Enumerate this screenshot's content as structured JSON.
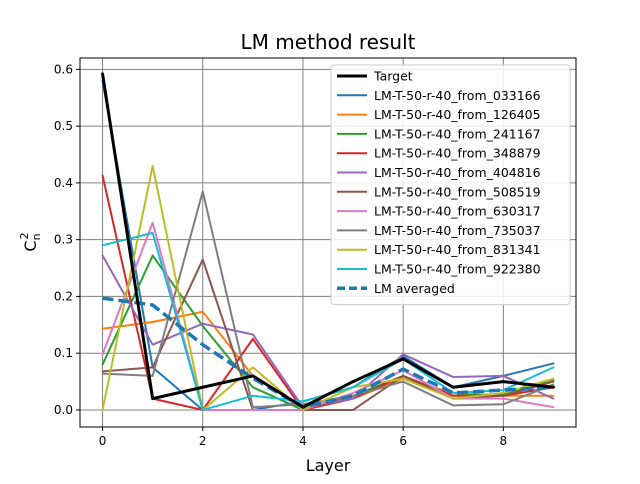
{
  "chart_data": {
    "type": "line",
    "title": "LM method result",
    "xlabel": "Layer",
    "ylabel_base": "C",
    "ylabel_sub": "n",
    "ylabel_sup": "2",
    "xlim": [
      -0.45,
      9.45
    ],
    "ylim": [
      -0.03,
      0.62
    ],
    "xticks": [
      0,
      2,
      4,
      6,
      8
    ],
    "xtick_labels": [
      "0",
      "2",
      "4",
      "6",
      "8"
    ],
    "yticks": [
      0.0,
      0.1,
      0.2,
      0.3,
      0.4,
      0.5,
      0.6
    ],
    "ytick_labels": [
      "0.0",
      "0.1",
      "0.2",
      "0.3",
      "0.4",
      "0.5",
      "0.6"
    ],
    "grid": true,
    "legend_position": "top-right",
    "x": [
      0,
      1,
      2,
      3,
      4,
      5,
      6,
      7,
      8,
      9
    ],
    "series": [
      {
        "name": "Target",
        "color": "#000000",
        "style": "solid",
        "width": 3,
        "values": [
          0.592,
          0.02,
          0.04,
          0.06,
          0.005,
          0.05,
          0.09,
          0.04,
          0.05,
          0.04
        ]
      },
      {
        "name": "LM-T-50-r-40_from_033166",
        "color": "#1f77b4",
        "style": "solid",
        "width": 2,
        "values": [
          0.58,
          0.075,
          0.0,
          0.0,
          0.015,
          0.04,
          0.095,
          0.04,
          0.06,
          0.082
        ]
      },
      {
        "name": "LM-T-50-r-40_from_126405",
        "color": "#ff7f0e",
        "style": "solid",
        "width": 2,
        "values": [
          0.143,
          0.155,
          0.173,
          0.06,
          0.005,
          0.02,
          0.055,
          0.03,
          0.025,
          0.025
        ]
      },
      {
        "name": "LM-T-50-r-40_from_241167",
        "color": "#2ca02c",
        "style": "solid",
        "width": 2,
        "values": [
          0.08,
          0.272,
          0.148,
          0.04,
          0.0,
          0.025,
          0.06,
          0.025,
          0.028,
          0.052
        ]
      },
      {
        "name": "LM-T-50-r-40_from_348879",
        "color": "#d62728",
        "style": "solid",
        "width": 2,
        "values": [
          0.413,
          0.02,
          0.0,
          0.125,
          0.0,
          0.02,
          0.06,
          0.025,
          0.025,
          0.04
        ]
      },
      {
        "name": "LM-T-50-r-40_from_404816",
        "color": "#9467bd",
        "style": "solid",
        "width": 2,
        "values": [
          0.272,
          0.115,
          0.152,
          0.133,
          0.005,
          0.02,
          0.098,
          0.058,
          0.06,
          0.02
        ]
      },
      {
        "name": "LM-T-50-r-40_from_508519",
        "color": "#8c564b",
        "style": "solid",
        "width": 2,
        "values": [
          0.068,
          0.075,
          0.265,
          0.0,
          0.0,
          0.0,
          0.06,
          0.02,
          0.025,
          0.05
        ]
      },
      {
        "name": "LM-T-50-r-40_from_630317",
        "color": "#e377c2",
        "style": "solid",
        "width": 2,
        "values": [
          0.098,
          0.33,
          0.0,
          0.0,
          0.0,
          0.03,
          0.07,
          0.02,
          0.02,
          0.005
        ]
      },
      {
        "name": "LM-T-50-r-40_from_735037",
        "color": "#7f7f7f",
        "style": "solid",
        "width": 2,
        "values": [
          0.064,
          0.06,
          0.385,
          0.005,
          0.01,
          0.025,
          0.05,
          0.008,
          0.01,
          0.045
        ]
      },
      {
        "name": "LM-T-50-r-40_from_831341",
        "color": "#bcbd22",
        "style": "solid",
        "width": 2,
        "values": [
          0.0,
          0.43,
          0.0,
          0.075,
          0.0,
          0.04,
          0.055,
          0.02,
          0.03,
          0.055
        ]
      },
      {
        "name": "LM-T-50-r-40_from_922380",
        "color": "#17becf",
        "style": "solid",
        "width": 2,
        "values": [
          0.29,
          0.312,
          0.0,
          0.025,
          0.015,
          0.04,
          0.09,
          0.03,
          0.035,
          0.075
        ]
      },
      {
        "name": "LM averaged",
        "color": "#1f77b4",
        "style": "dashed",
        "width": 3.5,
        "values": [
          0.197,
          0.185,
          0.115,
          0.056,
          0.005,
          0.025,
          0.072,
          0.03,
          0.035,
          0.04
        ]
      }
    ]
  }
}
